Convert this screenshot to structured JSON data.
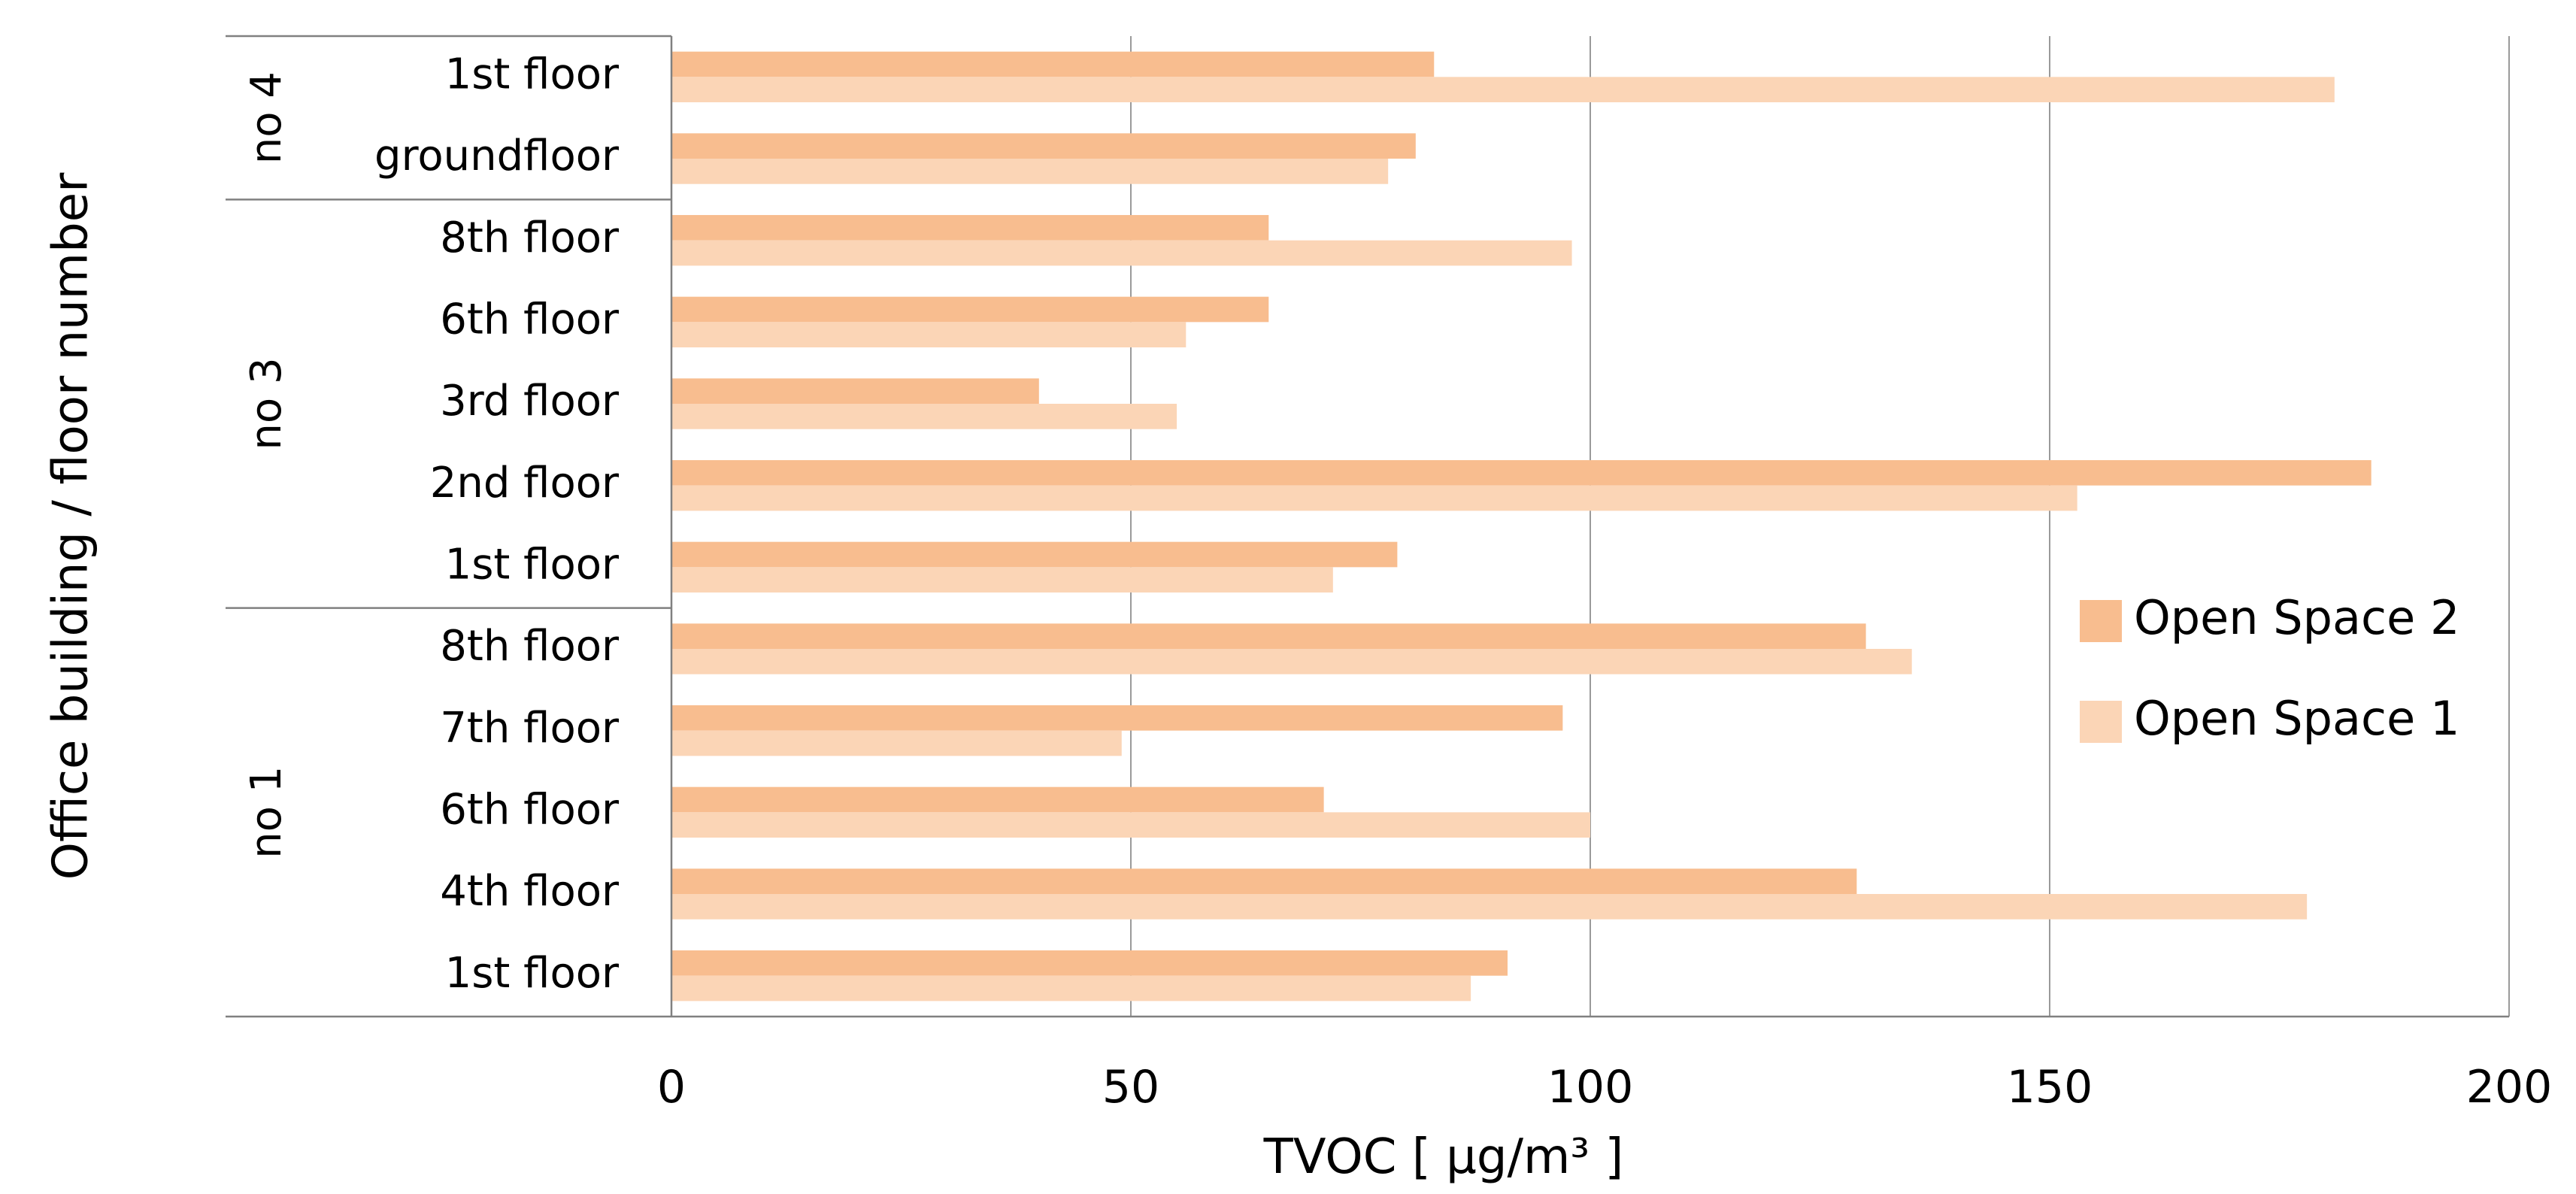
{
  "chart_data": {
    "type": "bar",
    "orientation": "horizontal",
    "xlabel": "TVOC [ µg/m³ ]",
    "ylabel": "Office building / floor number",
    "xlim": [
      0,
      200
    ],
    "xticks": [
      0,
      50,
      100,
      150,
      200
    ],
    "grid": true,
    "legend_position": "right",
    "groups": [
      {
        "name": "no 4",
        "categories": [
          "1st floor",
          "groundfloor"
        ]
      },
      {
        "name": "no 3",
        "categories": [
          "8th floor",
          "6th floor",
          "3rd floor",
          "2nd floor",
          "1st floor"
        ]
      },
      {
        "name": "no 1",
        "categories": [
          "8th floor",
          "7th floor",
          "6th floor",
          "4th floor",
          "1st floor"
        ]
      }
    ],
    "series": [
      {
        "name": "Open Space 2",
        "color": "#f8bd8f",
        "values": [
          83,
          81,
          65,
          65,
          40,
          185,
          79,
          130,
          97,
          71,
          129,
          91
        ]
      },
      {
        "name": "Open Space 1",
        "color": "#fbd5b6",
        "values": [
          181,
          78,
          98,
          56,
          55,
          153,
          72,
          135,
          49,
          100,
          178,
          87
        ]
      }
    ]
  }
}
